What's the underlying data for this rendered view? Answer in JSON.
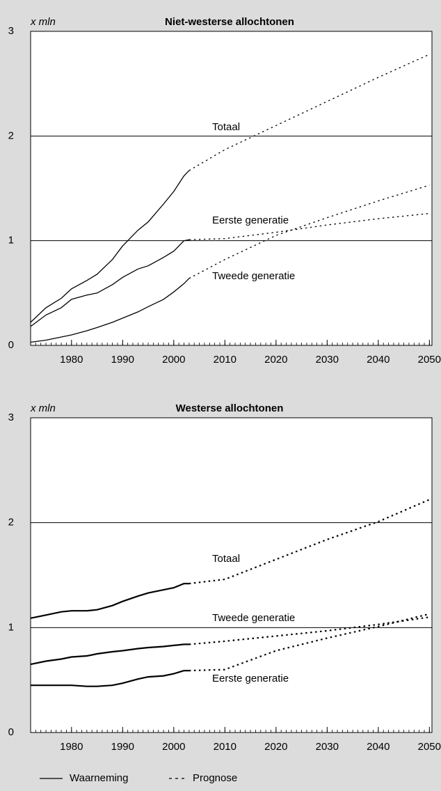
{
  "chart_data": [
    {
      "type": "line",
      "title": "Niet-westerse allochtonen",
      "y_label": "x mln",
      "x": [
        1972,
        1975,
        1978,
        1980,
        1983,
        1985,
        1988,
        1990,
        1993,
        1995,
        1998,
        2000,
        2002,
        2003,
        2010,
        2020,
        2030,
        2040,
        2050
      ],
      "observed_until": 2003,
      "series": [
        {
          "name": "Totaal",
          "color": "#000000",
          "values": [
            0.22,
            0.36,
            0.45,
            0.54,
            0.62,
            0.68,
            0.82,
            0.95,
            1.1,
            1.18,
            1.35,
            1.47,
            1.62,
            1.67,
            1.87,
            2.1,
            2.33,
            2.56,
            2.78
          ]
        },
        {
          "name": "Eerste generatie",
          "color": "#000000",
          "values": [
            0.18,
            0.29,
            0.36,
            0.44,
            0.48,
            0.5,
            0.58,
            0.65,
            0.73,
            0.76,
            0.84,
            0.9,
            1.0,
            1.01,
            1.02,
            1.08,
            1.15,
            1.21,
            1.26
          ]
        },
        {
          "name": "Tweede generatie",
          "color": "#000000",
          "values": [
            0.03,
            0.05,
            0.08,
            0.1,
            0.14,
            0.17,
            0.22,
            0.26,
            0.32,
            0.37,
            0.44,
            0.51,
            0.59,
            0.64,
            0.82,
            1.05,
            1.22,
            1.38,
            1.53
          ]
        }
      ],
      "xlim": [
        1972,
        2050.5
      ],
      "xticks": [
        1980,
        1990,
        2000,
        2010,
        2020,
        2030,
        2040,
        2050
      ],
      "xminor_step": 1,
      "ylim": [
        0,
        3
      ],
      "yticks": [
        0,
        1,
        2,
        3
      ],
      "grid": true
    },
    {
      "type": "line",
      "title": "Westerse allochtonen",
      "y_label": "x mln",
      "x": [
        1972,
        1975,
        1978,
        1980,
        1983,
        1985,
        1988,
        1990,
        1993,
        1995,
        1998,
        2000,
        2002,
        2003,
        2010,
        2020,
        2030,
        2040,
        2050
      ],
      "observed_until": 2003,
      "series": [
        {
          "name": "Totaal",
          "color": "#000000",
          "values": [
            1.09,
            1.12,
            1.15,
            1.16,
            1.16,
            1.17,
            1.21,
            1.25,
            1.3,
            1.33,
            1.36,
            1.38,
            1.42,
            1.42,
            1.46,
            1.65,
            1.84,
            2.01,
            2.22
          ]
        },
        {
          "name": "Tweede generatie",
          "color": "#000000",
          "values": [
            0.65,
            0.68,
            0.7,
            0.72,
            0.73,
            0.75,
            0.77,
            0.78,
            0.8,
            0.81,
            0.82,
            0.83,
            0.84,
            0.84,
            0.87,
            0.92,
            0.97,
            1.03,
            1.1
          ]
        },
        {
          "name": "Eerste generatie",
          "color": "#000000",
          "values": [
            0.45,
            0.45,
            0.45,
            0.45,
            0.44,
            0.44,
            0.45,
            0.47,
            0.51,
            0.53,
            0.54,
            0.56,
            0.59,
            0.59,
            0.6,
            0.78,
            0.9,
            1.01,
            1.13
          ]
        }
      ],
      "xlim": [
        1972,
        2050.5
      ],
      "xticks": [
        1980,
        1990,
        2000,
        2010,
        2020,
        2030,
        2040,
        2050
      ],
      "xminor_step": 1,
      "ylim": [
        0,
        3
      ],
      "yticks": [
        0,
        1,
        2,
        3
      ],
      "grid": true
    }
  ],
  "legend": [
    {
      "label": "Waarneming",
      "style": "solid"
    },
    {
      "label": "Prognose",
      "style": "dotted"
    }
  ]
}
